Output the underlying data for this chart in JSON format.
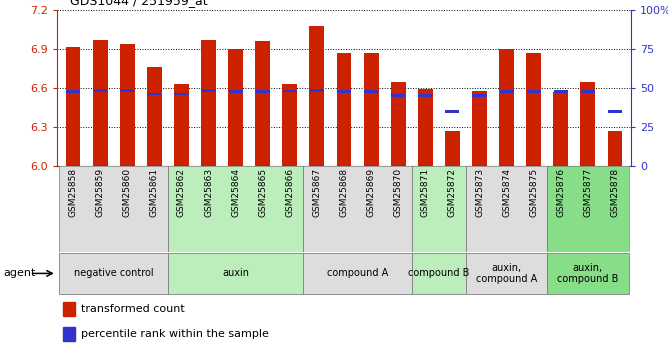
{
  "title": "GDS1044 / 251959_at",
  "samples": [
    "GSM25858",
    "GSM25859",
    "GSM25860",
    "GSM25861",
    "GSM25862",
    "GSM25863",
    "GSM25864",
    "GSM25865",
    "GSM25866",
    "GSM25867",
    "GSM25868",
    "GSM25869",
    "GSM25870",
    "GSM25871",
    "GSM25872",
    "GSM25873",
    "GSM25874",
    "GSM25875",
    "GSM25876",
    "GSM25877",
    "GSM25878"
  ],
  "bar_heights": [
    6.92,
    6.97,
    6.94,
    6.76,
    6.63,
    6.97,
    6.9,
    6.96,
    6.63,
    7.08,
    6.87,
    6.87,
    6.65,
    6.59,
    6.27,
    6.58,
    6.9,
    6.87,
    6.57,
    6.65,
    6.27
  ],
  "percentile_values": [
    6.575,
    6.582,
    6.58,
    6.553,
    6.553,
    6.58,
    6.573,
    6.573,
    6.577,
    6.582,
    6.57,
    6.57,
    6.543,
    6.543,
    6.42,
    6.543,
    6.573,
    6.573,
    6.57,
    6.573,
    6.42
  ],
  "bar_color": "#cc2200",
  "blue_color": "#3333cc",
  "ymin": 6.0,
  "ymax": 7.2,
  "yticks": [
    6.0,
    6.3,
    6.6,
    6.9,
    7.2
  ],
  "right_yticks_vals": [
    0,
    25,
    50,
    75,
    100
  ],
  "right_yticks_labels": [
    "0",
    "25",
    "50",
    "75",
    "100%"
  ],
  "groups": [
    {
      "label": "negative control",
      "start": 0,
      "end": 3,
      "color": "#dddddd"
    },
    {
      "label": "auxin",
      "start": 4,
      "end": 8,
      "color": "#bbeebb"
    },
    {
      "label": "compound A",
      "start": 9,
      "end": 12,
      "color": "#dddddd"
    },
    {
      "label": "compound B",
      "start": 13,
      "end": 14,
      "color": "#bbeebb"
    },
    {
      "label": "auxin,\ncompound A",
      "start": 15,
      "end": 17,
      "color": "#dddddd"
    },
    {
      "label": "auxin,\ncompound B",
      "start": 18,
      "end": 20,
      "color": "#88dd88"
    }
  ],
  "legend_items": [
    {
      "label": "transformed count",
      "color": "#cc2200"
    },
    {
      "label": "percentile rank within the sample",
      "color": "#3333cc"
    }
  ],
  "agent_label": "agent"
}
